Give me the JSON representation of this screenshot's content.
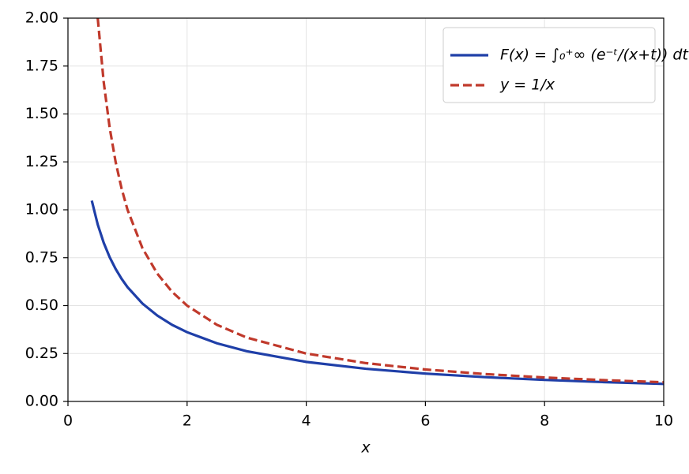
{
  "chart_data": {
    "type": "line",
    "xlabel": "x",
    "x": [
      0.4,
      0.5,
      0.6,
      0.7,
      0.8,
      0.9,
      1,
      1.25,
      1.5,
      1.75,
      2,
      2.5,
      3,
      4,
      5,
      6,
      7,
      8,
      9,
      10
    ],
    "series": [
      {
        "name": "F(x) = ∫₀⁺∞ (e⁻ᵗ/(x+t)) dt",
        "color": "#1f3fa8",
        "dashed": false,
        "values": [
          1.0478,
          0.9229,
          0.828,
          0.7527,
          0.6913,
          0.64,
          0.5963,
          0.511,
          0.4482,
          0.3994,
          0.3613,
          0.3035,
          0.2621,
          0.2063,
          0.1704,
          0.1453,
          0.1267,
          0.1123,
          0.1009,
          0.0916
        ]
      },
      {
        "name": "y = 1/x",
        "color": "#c0392b",
        "dashed": true,
        "values": [
          null,
          2,
          1.6667,
          1.4286,
          1.25,
          1.1111,
          1,
          0.8,
          0.6667,
          0.5714,
          0.5,
          0.4,
          0.3333,
          0.25,
          0.2,
          0.1667,
          0.1429,
          0.125,
          0.1111,
          0.1
        ]
      }
    ],
    "xlim": [
      0,
      10
    ],
    "xticks": [
      0,
      2,
      4,
      6,
      8,
      10
    ],
    "ylim": [
      0,
      2
    ],
    "yticks": [
      {
        "value": 0,
        "label": "0.00"
      },
      {
        "value": 0.25,
        "label": "0.25"
      },
      {
        "value": 0.5,
        "label": "0.50"
      },
      {
        "value": 0.75,
        "label": "0.75"
      },
      {
        "value": 1,
        "label": "1.00"
      },
      {
        "value": 1.25,
        "label": "1.25"
      },
      {
        "value": 1.5,
        "label": "1.50"
      },
      {
        "value": 1.75,
        "label": "1.75"
      },
      {
        "value": 2,
        "label": "2.00"
      }
    ],
    "grid": true,
    "legend": "upper right"
  }
}
